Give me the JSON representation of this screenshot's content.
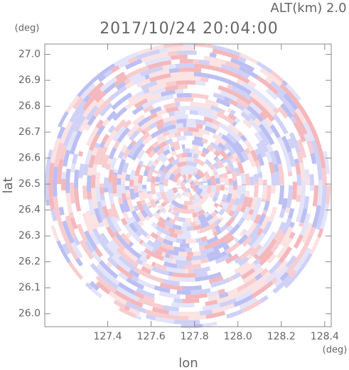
{
  "chart_data": {
    "type": "radar-ppi",
    "title": "2017/10/24 20:04:00",
    "altitude_label": "ALT(km) 2.0",
    "x_label": "lon",
    "y_label": "lat",
    "x_unit": "(deg)",
    "y_unit": "(deg)",
    "xlim": [
      127.11,
      128.43
    ],
    "ylim": [
      25.95,
      27.04
    ],
    "xticks": [
      127.4,
      127.6,
      127.8,
      {
        "value": 128,
        "label": "128.0"
      },
      128.2,
      128.4
    ],
    "yticks": [
      {
        "value": 26,
        "label": "26.0"
      },
      26.1,
      26.2,
      26.3,
      26.4,
      26.5,
      26.6,
      26.7,
      26.8,
      26.9,
      {
        "value": 27,
        "label": "27.0"
      }
    ]
  }
}
